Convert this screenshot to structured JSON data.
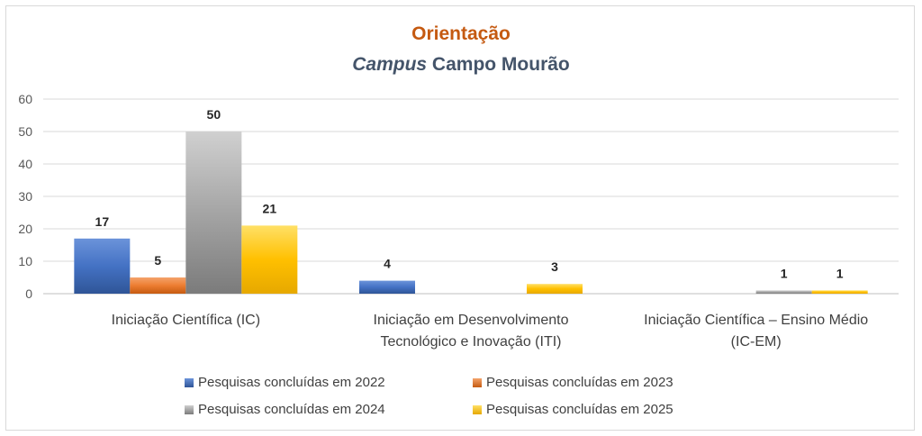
{
  "title": {
    "line1": "Orientação",
    "line2_italic": "Campus",
    "line2_rest": " Campo Mourão"
  },
  "colors": {
    "title1": "#c55a11",
    "title2": "#44546a",
    "series": [
      "#4472c4",
      "#ed7d31",
      "#a5a5a5",
      "#ffc000"
    ]
  },
  "chart_data": {
    "type": "bar",
    "title": "Orientação Campus Campo Mourão",
    "categories": [
      [
        "Iniciação Científica (IC)"
      ],
      [
        "Iniciação em Desenvolvimento",
        "Tecnológico e Inovação (ITI)"
      ],
      [
        "Iniciação Científica – Ensino Médio",
        "(IC-EM)"
      ]
    ],
    "series": [
      {
        "name": "Pesquisas concluídas em 2022",
        "values": [
          17,
          4,
          0
        ],
        "labels": [
          "17",
          "4",
          ""
        ]
      },
      {
        "name": "Pesquisas concluídas em 2023",
        "values": [
          5,
          0,
          0
        ],
        "labels": [
          "5",
          "",
          ""
        ]
      },
      {
        "name": "Pesquisas concluídas em 2024",
        "values": [
          50,
          0,
          1
        ],
        "labels": [
          "50",
          "",
          "1"
        ]
      },
      {
        "name": "Pesquisas concluídas em 2025",
        "values": [
          21,
          3,
          1
        ],
        "labels": [
          "21",
          "3",
          "1"
        ]
      }
    ],
    "ylim": [
      0,
      60
    ],
    "yticks": [
      0,
      10,
      20,
      30,
      40,
      50,
      60
    ],
    "grid": true,
    "legend_position": "bottom"
  }
}
